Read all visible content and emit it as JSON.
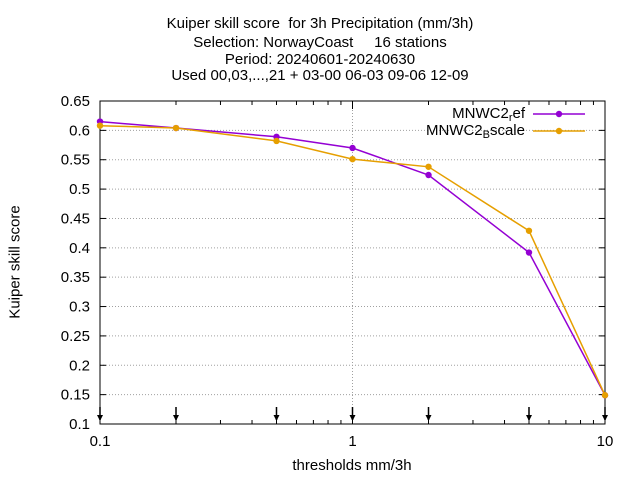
{
  "chart_data": {
    "type": "line",
    "title_lines": [
      "Kuiper skill score  for 3h Precipitation (mm/3h)",
      "Selection: NorwayCoast     16 stations",
      "Period: 20240601-20240630",
      "Used 00,03,...,21 + 03-00 06-03 09-06 12-09"
    ],
    "xlabel": "thresholds mm/3h",
    "ylabel": "Kuiper skill score",
    "x_scale": "log",
    "xlim": [
      0.1,
      10
    ],
    "ylim": [
      0.1,
      0.65
    ],
    "x_ticks": [
      {
        "value": 0.1,
        "label": "0.1"
      },
      {
        "value": 1,
        "label": "1"
      },
      {
        "value": 10,
        "label": "10"
      }
    ],
    "y_ticks": [
      {
        "value": 0.1,
        "label": "0.1"
      },
      {
        "value": 0.15,
        "label": "0.15"
      },
      {
        "value": 0.2,
        "label": "0.2"
      },
      {
        "value": 0.25,
        "label": "0.25"
      },
      {
        "value": 0.3,
        "label": "0.3"
      },
      {
        "value": 0.35,
        "label": "0.35"
      },
      {
        "value": 0.4,
        "label": "0.4"
      },
      {
        "value": 0.45,
        "label": "0.45"
      },
      {
        "value": 0.5,
        "label": "0.5"
      },
      {
        "value": 0.55,
        "label": "0.55"
      },
      {
        "value": 0.6,
        "label": "0.6"
      },
      {
        "value": 0.65,
        "label": "0.65"
      }
    ],
    "grid": true,
    "legend_position": "top-right",
    "threshold_markers": [
      0.1,
      0.2,
      0.5,
      1,
      2,
      5,
      10
    ],
    "series": [
      {
        "name": "MNWC2_ref",
        "legend_main": "MNWC2",
        "legend_sub": "r",
        "legend_tail": "ef",
        "color": "#9400d3",
        "x": [
          0.1,
          0.2,
          0.5,
          1,
          2,
          5,
          10
        ],
        "y": [
          0.615,
          0.604,
          0.589,
          0.57,
          0.524,
          0.392,
          0.149
        ]
      },
      {
        "name": "MNWC2_Bscale",
        "legend_main": "MNWC2",
        "legend_sub": "B",
        "legend_tail": "scale",
        "color": "#e69f00",
        "x": [
          0.1,
          0.2,
          0.5,
          1,
          2,
          5,
          10
        ],
        "y": [
          0.608,
          0.604,
          0.582,
          0.551,
          0.538,
          0.429,
          0.149
        ]
      }
    ]
  }
}
